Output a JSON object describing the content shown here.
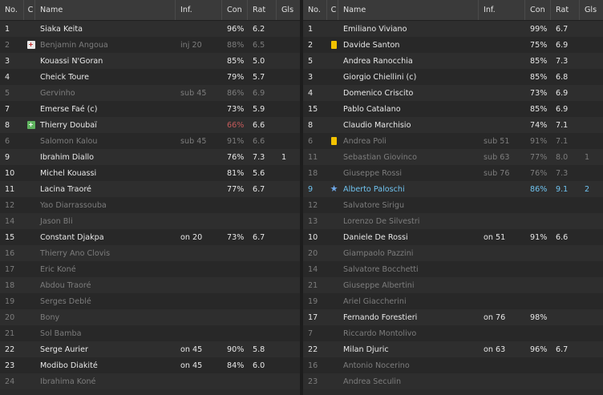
{
  "headers": {
    "no": "No.",
    "c": "C",
    "name": "Name",
    "inf": "Inf.",
    "con": "Con",
    "rat": "Rat",
    "gls": "Gls"
  },
  "colors": {
    "panel": "#2b2b2b",
    "header": "#3a3a3a",
    "dim_text": "#7d7d7d",
    "low_condition": "#c45a5a",
    "highlight": "#6fc3f0",
    "yellow_card": "#f2c200",
    "substitution": "#5fb35f"
  },
  "left": [
    {
      "no": "1",
      "icon": "",
      "name": "Siaka Keita",
      "inf": "",
      "con": "96%",
      "rat": "6.2",
      "gls": "",
      "style": ""
    },
    {
      "no": "2",
      "icon": "injury",
      "name": "Benjamin Angoua",
      "inf": "inj 20",
      "con": "88%",
      "rat": "6.5",
      "gls": "",
      "style": "dim"
    },
    {
      "no": "3",
      "icon": "",
      "name": "Kouassi N'Goran",
      "inf": "",
      "con": "85%",
      "rat": "5.0",
      "gls": "",
      "style": ""
    },
    {
      "no": "4",
      "icon": "",
      "name": "Cheick Toure",
      "inf": "",
      "con": "79%",
      "rat": "5.7",
      "gls": "",
      "style": ""
    },
    {
      "no": "5",
      "icon": "",
      "name": "Gervinho",
      "inf": "sub 45",
      "con": "86%",
      "rat": "6.9",
      "gls": "",
      "style": "dim"
    },
    {
      "no": "7",
      "icon": "",
      "name": "Emerse Faé (c)",
      "inf": "",
      "con": "73%",
      "rat": "5.9",
      "gls": "",
      "style": ""
    },
    {
      "no": "8",
      "icon": "sub-in",
      "name": "Thierry Doubaï",
      "inf": "",
      "con": "66%",
      "rat": "6.6",
      "gls": "",
      "style": "",
      "con_style": "red"
    },
    {
      "no": "6",
      "icon": "",
      "name": "Salomon Kalou",
      "inf": "sub 45",
      "con": "91%",
      "rat": "6.6",
      "gls": "",
      "style": "dim"
    },
    {
      "no": "9",
      "icon": "",
      "name": "Ibrahim Diallo",
      "inf": "",
      "con": "76%",
      "rat": "7.3",
      "gls": "1",
      "style": ""
    },
    {
      "no": "10",
      "icon": "",
      "name": "Michel Kouassi",
      "inf": "",
      "con": "81%",
      "rat": "5.6",
      "gls": "",
      "style": ""
    },
    {
      "no": "11",
      "icon": "",
      "name": "Lacina Traoré",
      "inf": "",
      "con": "77%",
      "rat": "6.7",
      "gls": "",
      "style": ""
    },
    {
      "no": "12",
      "icon": "",
      "name": "Yao Diarrassouba",
      "inf": "",
      "con": "",
      "rat": "",
      "gls": "",
      "style": "dim"
    },
    {
      "no": "14",
      "icon": "",
      "name": "Jason Bli",
      "inf": "",
      "con": "",
      "rat": "",
      "gls": "",
      "style": "dim"
    },
    {
      "no": "15",
      "icon": "",
      "name": "Constant Djakpa",
      "inf": "on 20",
      "con": "73%",
      "rat": "6.7",
      "gls": "",
      "style": ""
    },
    {
      "no": "16",
      "icon": "",
      "name": "Thierry Ano Clovis",
      "inf": "",
      "con": "",
      "rat": "",
      "gls": "",
      "style": "dim"
    },
    {
      "no": "17",
      "icon": "",
      "name": "Eric Koné",
      "inf": "",
      "con": "",
      "rat": "",
      "gls": "",
      "style": "dim"
    },
    {
      "no": "18",
      "icon": "",
      "name": "Abdou Traoré",
      "inf": "",
      "con": "",
      "rat": "",
      "gls": "",
      "style": "dim"
    },
    {
      "no": "19",
      "icon": "",
      "name": "Serges Deblé",
      "inf": "",
      "con": "",
      "rat": "",
      "gls": "",
      "style": "dim"
    },
    {
      "no": "20",
      "icon": "",
      "name": "Bony",
      "inf": "",
      "con": "",
      "rat": "",
      "gls": "",
      "style": "dim"
    },
    {
      "no": "21",
      "icon": "",
      "name": "Sol Bamba",
      "inf": "",
      "con": "",
      "rat": "",
      "gls": "",
      "style": "dim"
    },
    {
      "no": "22",
      "icon": "",
      "name": "Serge Aurier",
      "inf": "on 45",
      "con": "90%",
      "rat": "5.8",
      "gls": "",
      "style": ""
    },
    {
      "no": "23",
      "icon": "",
      "name": "Modibo Diakité",
      "inf": "on 45",
      "con": "84%",
      "rat": "6.0",
      "gls": "",
      "style": ""
    },
    {
      "no": "24",
      "icon": "",
      "name": "Ibrahima Koné",
      "inf": "",
      "con": "",
      "rat": "",
      "gls": "",
      "style": "dim"
    }
  ],
  "right": [
    {
      "no": "1",
      "icon": "",
      "name": "Emiliano Viviano",
      "inf": "",
      "con": "99%",
      "rat": "6.7",
      "gls": "",
      "style": ""
    },
    {
      "no": "2",
      "icon": "yellow-card",
      "name": "Davide Santon",
      "inf": "",
      "con": "75%",
      "rat": "6.9",
      "gls": "",
      "style": ""
    },
    {
      "no": "5",
      "icon": "",
      "name": "Andrea Ranocchia",
      "inf": "",
      "con": "85%",
      "rat": "7.3",
      "gls": "",
      "style": ""
    },
    {
      "no": "3",
      "icon": "",
      "name": "Giorgio Chiellini (c)",
      "inf": "",
      "con": "85%",
      "rat": "6.8",
      "gls": "",
      "style": ""
    },
    {
      "no": "4",
      "icon": "",
      "name": "Domenico Criscito",
      "inf": "",
      "con": "73%",
      "rat": "6.9",
      "gls": "",
      "style": ""
    },
    {
      "no": "15",
      "icon": "",
      "name": "Pablo Catalano",
      "inf": "",
      "con": "85%",
      "rat": "6.9",
      "gls": "",
      "style": ""
    },
    {
      "no": "8",
      "icon": "",
      "name": "Claudio Marchisio",
      "inf": "",
      "con": "74%",
      "rat": "7.1",
      "gls": "",
      "style": ""
    },
    {
      "no": "6",
      "icon": "yellow-card",
      "name": "Andrea Poli",
      "inf": "sub 51",
      "con": "91%",
      "rat": "7.1",
      "gls": "",
      "style": "dim"
    },
    {
      "no": "11",
      "icon": "",
      "name": "Sebastian Giovinco",
      "inf": "sub 63",
      "con": "77%",
      "rat": "8.0",
      "gls": "1",
      "style": "dim"
    },
    {
      "no": "18",
      "icon": "",
      "name": "Giuseppe Rossi",
      "inf": "sub 76",
      "con": "76%",
      "rat": "7.3",
      "gls": "",
      "style": "dim"
    },
    {
      "no": "9",
      "icon": "star",
      "name": "Alberto Paloschi",
      "inf": "",
      "con": "86%",
      "rat": "9.1",
      "gls": "2",
      "style": "hl"
    },
    {
      "no": "12",
      "icon": "",
      "name": "Salvatore Sirigu",
      "inf": "",
      "con": "",
      "rat": "",
      "gls": "",
      "style": "dim"
    },
    {
      "no": "13",
      "icon": "",
      "name": "Lorenzo De Silvestri",
      "inf": "",
      "con": "",
      "rat": "",
      "gls": "",
      "style": "dim"
    },
    {
      "no": "10",
      "icon": "",
      "name": "Daniele De Rossi",
      "inf": "on 51",
      "con": "91%",
      "rat": "6.6",
      "gls": "",
      "style": ""
    },
    {
      "no": "20",
      "icon": "",
      "name": "Giampaolo Pazzini",
      "inf": "",
      "con": "",
      "rat": "",
      "gls": "",
      "style": "dim"
    },
    {
      "no": "14",
      "icon": "",
      "name": "Salvatore Bocchetti",
      "inf": "",
      "con": "",
      "rat": "",
      "gls": "",
      "style": "dim"
    },
    {
      "no": "21",
      "icon": "",
      "name": "Giuseppe Albertini",
      "inf": "",
      "con": "",
      "rat": "",
      "gls": "",
      "style": "dim"
    },
    {
      "no": "19",
      "icon": "",
      "name": "Ariel Giaccherini",
      "inf": "",
      "con": "",
      "rat": "",
      "gls": "",
      "style": "dim"
    },
    {
      "no": "17",
      "icon": "",
      "name": "Fernando Forestieri",
      "inf": "on 76",
      "con": "98%",
      "rat": "",
      "gls": "",
      "style": ""
    },
    {
      "no": "7",
      "icon": "",
      "name": "Riccardo Montolivo",
      "inf": "",
      "con": "",
      "rat": "",
      "gls": "",
      "style": "dim"
    },
    {
      "no": "22",
      "icon": "",
      "name": "Milan Djuric",
      "inf": "on 63",
      "con": "96%",
      "rat": "6.7",
      "gls": "",
      "style": ""
    },
    {
      "no": "16",
      "icon": "",
      "name": "Antonio Nocerino",
      "inf": "",
      "con": "",
      "rat": "",
      "gls": "",
      "style": "dim"
    },
    {
      "no": "23",
      "icon": "",
      "name": "Andrea Seculin",
      "inf": "",
      "con": "",
      "rat": "",
      "gls": "",
      "style": "dim"
    }
  ]
}
